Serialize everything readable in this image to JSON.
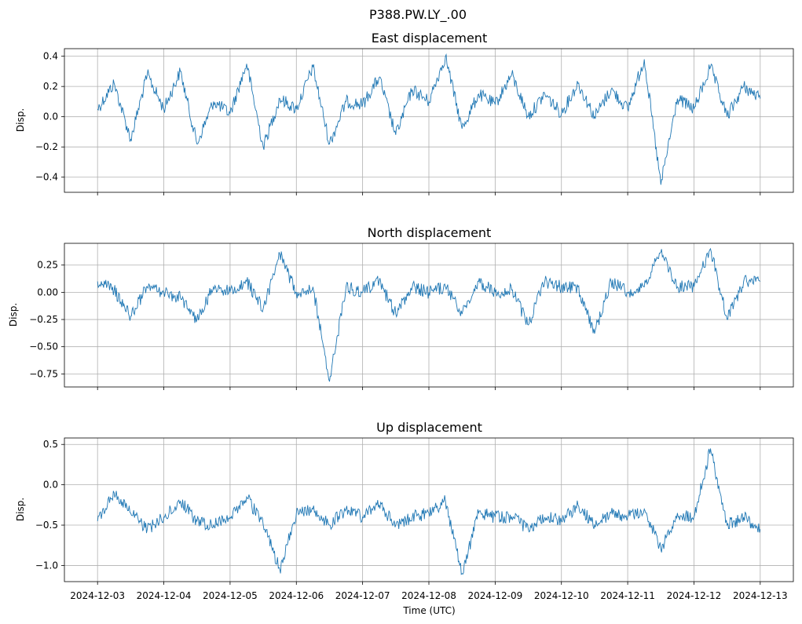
{
  "suptitle": "P388.PW.LY_.00",
  "xlabel": "Time (UTC)",
  "line_color": "#1f77b4",
  "x_tick_labels": [
    "2024-12-03",
    "2024-12-04",
    "2024-12-05",
    "2024-12-06",
    "2024-12-07",
    "2024-12-08",
    "2024-12-09",
    "2024-12-10",
    "2024-12-11",
    "2024-12-12",
    "2024-12-13"
  ],
  "chart_data": [
    {
      "type": "line",
      "title": "East displacement",
      "ylabel": "Disp.",
      "xlim": [
        "2024-12-02T12:00",
        "2024-12-13T12:00"
      ],
      "ylim": [
        -0.5,
        0.45
      ],
      "yticks": [
        0.4,
        0.2,
        0.0,
        -0.2,
        -0.4
      ],
      "ytick_labels": [
        "0.4",
        "0.2",
        "0.0",
        "−0.2",
        "−0.4"
      ],
      "grid": true,
      "x": [
        "2024-12-03T00:00",
        "2024-12-03T06:00",
        "2024-12-03T12:00",
        "2024-12-03T18:00",
        "2024-12-04T00:00",
        "2024-12-04T06:00",
        "2024-12-04T12:00",
        "2024-12-04T18:00",
        "2024-12-05T00:00",
        "2024-12-05T06:00",
        "2024-12-05T12:00",
        "2024-12-05T18:00",
        "2024-12-06T00:00",
        "2024-12-06T06:00",
        "2024-12-06T12:00",
        "2024-12-06T18:00",
        "2024-12-07T00:00",
        "2024-12-07T06:00",
        "2024-12-07T12:00",
        "2024-12-07T18:00",
        "2024-12-08T00:00",
        "2024-12-08T06:00",
        "2024-12-08T12:00",
        "2024-12-08T18:00",
        "2024-12-09T00:00",
        "2024-12-09T06:00",
        "2024-12-09T12:00",
        "2024-12-09T18:00",
        "2024-12-10T00:00",
        "2024-12-10T06:00",
        "2024-12-10T12:00",
        "2024-12-10T18:00",
        "2024-12-11T00:00",
        "2024-12-11T06:00",
        "2024-12-11T12:00",
        "2024-12-11T18:00",
        "2024-12-12T00:00",
        "2024-12-12T06:00",
        "2024-12-12T12:00",
        "2024-12-12T18:00",
        "2024-12-13T00:00"
      ],
      "y": [
        0.05,
        0.22,
        -0.15,
        0.28,
        0.05,
        0.3,
        -0.18,
        0.1,
        0.02,
        0.35,
        -0.2,
        0.12,
        0.05,
        0.33,
        -0.18,
        0.1,
        0.08,
        0.26,
        -0.12,
        0.18,
        0.1,
        0.4,
        -0.08,
        0.15,
        0.08,
        0.28,
        0.0,
        0.15,
        0.02,
        0.22,
        0.0,
        0.18,
        0.05,
        0.38,
        -0.45,
        0.12,
        0.05,
        0.33,
        0.0,
        0.2,
        0.12
      ]
    },
    {
      "type": "line",
      "title": "North displacement",
      "ylabel": "Disp.",
      "xlim": [
        "2024-12-02T12:00",
        "2024-12-13T12:00"
      ],
      "ylim": [
        -0.87,
        0.45
      ],
      "yticks": [
        0.25,
        0.0,
        -0.25,
        -0.5,
        -0.75
      ],
      "ytick_labels": [
        "0.25",
        "0.00",
        "−0.25",
        "−0.50",
        "−0.75"
      ],
      "grid": true,
      "x": [
        "2024-12-03T00:00",
        "2024-12-03T06:00",
        "2024-12-03T12:00",
        "2024-12-03T18:00",
        "2024-12-04T00:00",
        "2024-12-04T06:00",
        "2024-12-04T12:00",
        "2024-12-04T18:00",
        "2024-12-05T00:00",
        "2024-12-05T06:00",
        "2024-12-05T12:00",
        "2024-12-05T18:00",
        "2024-12-06T00:00",
        "2024-12-06T06:00",
        "2024-12-06T12:00",
        "2024-12-06T18:00",
        "2024-12-07T00:00",
        "2024-12-07T06:00",
        "2024-12-07T12:00",
        "2024-12-07T18:00",
        "2024-12-08T00:00",
        "2024-12-08T06:00",
        "2024-12-08T12:00",
        "2024-12-08T18:00",
        "2024-12-09T00:00",
        "2024-12-09T06:00",
        "2024-12-09T12:00",
        "2024-12-09T18:00",
        "2024-12-10T00:00",
        "2024-12-10T06:00",
        "2024-12-10T12:00",
        "2024-12-10T18:00",
        "2024-12-11T00:00",
        "2024-12-11T06:00",
        "2024-12-11T12:00",
        "2024-12-11T18:00",
        "2024-12-12T00:00",
        "2024-12-12T06:00",
        "2024-12-12T12:00",
        "2024-12-12T18:00",
        "2024-12-13T00:00"
      ],
      "y": [
        0.1,
        0.02,
        -0.22,
        0.05,
        0.0,
        -0.05,
        -0.25,
        0.05,
        0.0,
        0.1,
        -0.15,
        0.35,
        0.0,
        0.05,
        -0.82,
        0.05,
        0.0,
        0.1,
        -0.2,
        0.05,
        0.0,
        0.05,
        -0.2,
        0.1,
        0.0,
        0.02,
        -0.3,
        0.1,
        0.05,
        0.05,
        -0.38,
        0.1,
        0.0,
        0.05,
        0.37,
        0.05,
        0.05,
        0.4,
        -0.25,
        0.1,
        0.1
      ]
    },
    {
      "type": "line",
      "title": "Up displacement",
      "ylabel": "Disp.",
      "xlim": [
        "2024-12-02T12:00",
        "2024-12-13T12:00"
      ],
      "ylim": [
        -1.2,
        0.58
      ],
      "yticks": [
        0.5,
        0.0,
        -0.5,
        -1.0
      ],
      "ytick_labels": [
        "0.5",
        "0.0",
        "−0.5",
        "−1.0"
      ],
      "grid": true,
      "x": [
        "2024-12-03T00:00",
        "2024-12-03T06:00",
        "2024-12-03T12:00",
        "2024-12-03T18:00",
        "2024-12-04T00:00",
        "2024-12-04T06:00",
        "2024-12-04T12:00",
        "2024-12-04T18:00",
        "2024-12-05T00:00",
        "2024-12-05T06:00",
        "2024-12-05T12:00",
        "2024-12-05T18:00",
        "2024-12-06T00:00",
        "2024-12-06T06:00",
        "2024-12-06T12:00",
        "2024-12-06T18:00",
        "2024-12-07T00:00",
        "2024-12-07T06:00",
        "2024-12-07T12:00",
        "2024-12-07T18:00",
        "2024-12-08T00:00",
        "2024-12-08T06:00",
        "2024-12-08T12:00",
        "2024-12-08T18:00",
        "2024-12-09T00:00",
        "2024-12-09T06:00",
        "2024-12-09T12:00",
        "2024-12-09T18:00",
        "2024-12-10T00:00",
        "2024-12-10T06:00",
        "2024-12-10T12:00",
        "2024-12-10T18:00",
        "2024-12-11T00:00",
        "2024-12-11T06:00",
        "2024-12-11T12:00",
        "2024-12-11T18:00",
        "2024-12-12T00:00",
        "2024-12-12T06:00",
        "2024-12-12T12:00",
        "2024-12-12T18:00",
        "2024-12-13T00:00"
      ],
      "y": [
        -0.45,
        -0.1,
        -0.35,
        -0.55,
        -0.4,
        -0.2,
        -0.45,
        -0.5,
        -0.4,
        -0.15,
        -0.5,
        -1.05,
        -0.35,
        -0.3,
        -0.5,
        -0.3,
        -0.4,
        -0.25,
        -0.5,
        -0.4,
        -0.35,
        -0.2,
        -1.1,
        -0.35,
        -0.4,
        -0.4,
        -0.55,
        -0.4,
        -0.45,
        -0.25,
        -0.5,
        -0.35,
        -0.4,
        -0.3,
        -0.8,
        -0.35,
        -0.4,
        0.45,
        -0.5,
        -0.4,
        -0.55
      ]
    }
  ]
}
